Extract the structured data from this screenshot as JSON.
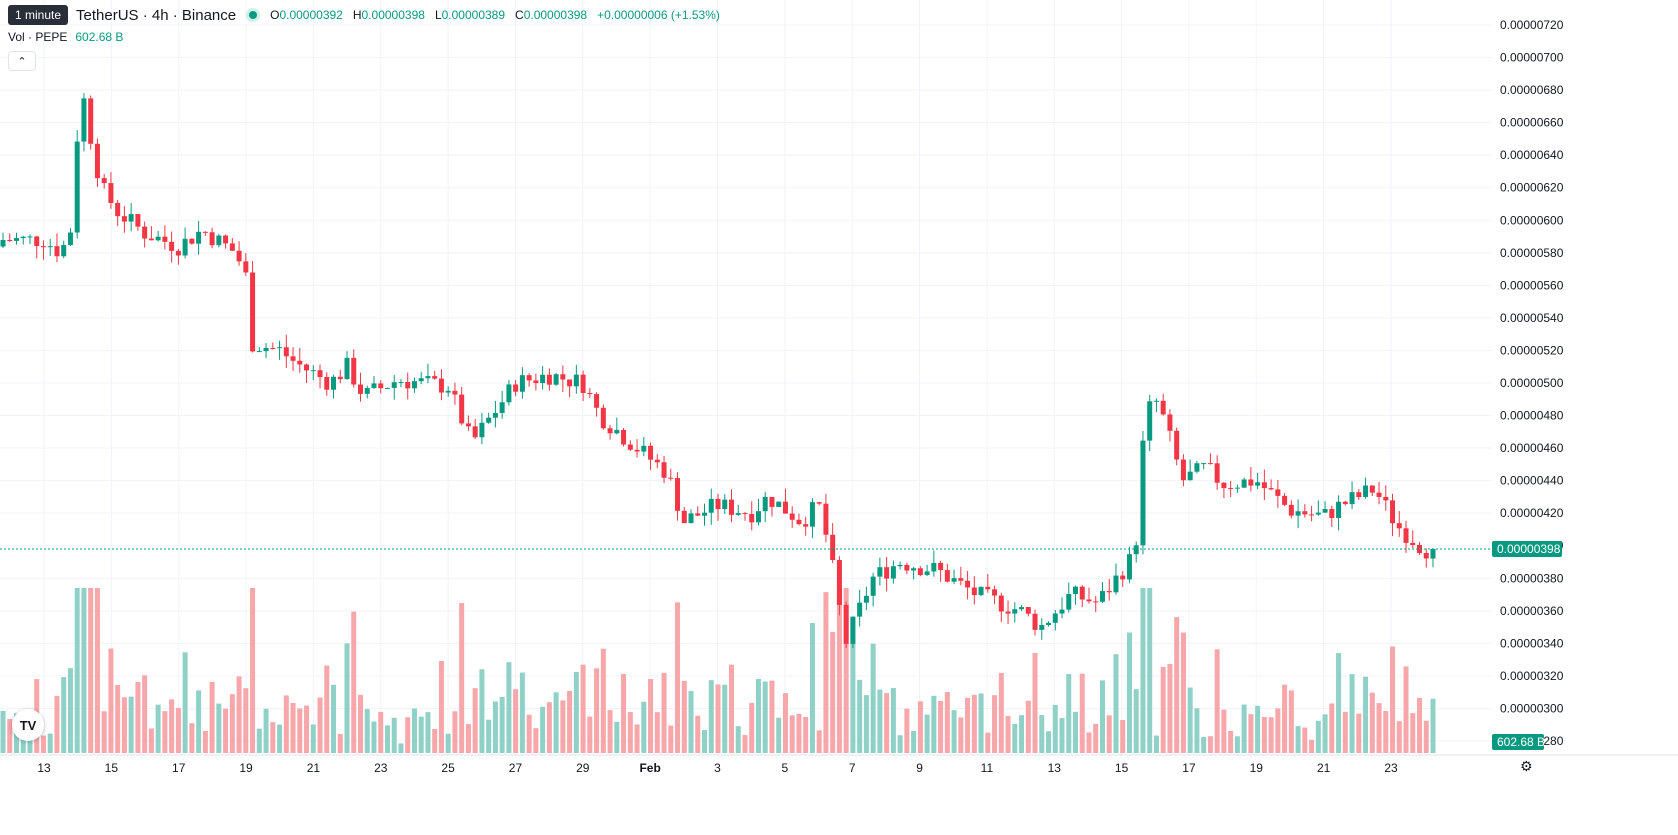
{
  "header": {
    "tooltip": "1 minute",
    "title": "TetherUS · 4h · Binance",
    "ohlc": [
      {
        "label": "O",
        "value": "0.00000392"
      },
      {
        "label": "H",
        "value": "0.00000398"
      },
      {
        "label": "L",
        "value": "0.00000389"
      },
      {
        "label": "C",
        "value": "0.00000398"
      }
    ],
    "change": "+0.00000006 (+1.53%)",
    "volume_label": "Vol · PEPE",
    "volume_value": "602.68 B",
    "collapse_icon": "chevron-up-icon",
    "logo": "TV"
  },
  "colors": {
    "up": "#089981",
    "down": "#f23645",
    "up_volume": "#8fd1c6",
    "down_volume": "#f7a6aa",
    "grid": "#f0f3fa",
    "current_price": "#089981"
  },
  "chart_data": {
    "type": "candlestick",
    "y_axis": {
      "range": [
        2.8e-06,
        7.2e-06
      ],
      "ticks": [
        "0.00000720",
        "0.00000700",
        "0.00000680",
        "0.00000660",
        "0.00000640",
        "0.00000620",
        "0.00000600",
        "0.00000580",
        "0.00000560",
        "0.00000540",
        "0.00000520",
        "0.00000500",
        "0.00000480",
        "0.00000460",
        "0.00000440",
        "0.00000420",
        "0.00000400",
        "0.00000380",
        "0.00000360",
        "0.00000340",
        "0.00000320",
        "0.00000300",
        "0.00000280"
      ]
    },
    "x_axis": {
      "ticks": [
        "13",
        "15",
        "17",
        "19",
        "21",
        "23",
        "25",
        "27",
        "29",
        "Feb",
        "3",
        "5",
        "7",
        "9",
        "11",
        "13",
        "15",
        "17",
        "19",
        "21",
        "23"
      ]
    },
    "current_price": 3.98e-06,
    "current_price_label": "0.00000398",
    "volume_label": "602.68 B",
    "path": [
      [
        "13",
        5.88e-06
      ],
      [
        "13.5",
        5.8e-06
      ],
      [
        "13.9",
        6e-06
      ],
      [
        "14.05",
        6.9e-06
      ],
      [
        "14.3",
        6.6e-06
      ],
      [
        "14.7",
        6.2e-06
      ],
      [
        "15.2",
        6.05e-06
      ],
      [
        "16",
        5.92e-06
      ],
      [
        "17",
        5.84e-06
      ],
      [
        "17.7",
        5.94e-06
      ],
      [
        "18.7",
        5.8e-06
      ],
      [
        "19",
        5.65e-06
      ],
      [
        "19.1",
        5.25e-06
      ],
      [
        "20",
        5.2e-06
      ],
      [
        "20.5",
        5.12e-06
      ],
      [
        "21.5",
        5e-06
      ],
      [
        "22",
        5.1e-06
      ],
      [
        "22.5",
        4.92e-06
      ],
      [
        "23.5",
        5.02e-06
      ],
      [
        "25",
        4.98e-06
      ],
      [
        "25.7",
        4.63e-06
      ],
      [
        "27",
        5e-06
      ],
      [
        "28",
        5.05e-06
      ],
      [
        "29",
        5e-06
      ],
      [
        "29.5",
        4.8e-06
      ],
      [
        "30.5",
        4.62e-06
      ],
      [
        "31.5",
        4.45e-06
      ],
      [
        "Feb 1",
        4.15e-06
      ],
      [
        "Feb 2",
        4.25e-06
      ],
      [
        "Feb 3",
        4.2e-06
      ],
      [
        "Feb 3.5",
        4.3e-06
      ],
      [
        "Feb 4.5",
        4.15e-06
      ],
      [
        "Feb 5",
        4.25e-06
      ],
      [
        "Feb 5.3",
        4e-06
      ],
      [
        "Feb 5.8",
        3.4e-06
      ],
      [
        "Feb 6.6",
        3.8e-06
      ],
      [
        "Feb 7.4",
        3.9e-06
      ],
      [
        "Feb 8.5",
        3.85e-06
      ],
      [
        "Feb 9.7",
        3.7e-06
      ],
      [
        "Feb 11",
        3.6e-06
      ],
      [
        "Feb 11.6",
        3.5e-06
      ],
      [
        "Feb 12.5",
        3.7e-06
      ],
      [
        "Feb 13.3",
        3.65e-06
      ],
      [
        "Feb 14.4",
        3.95e-06
      ],
      [
        "Feb 14.7",
        4.8e-06
      ],
      [
        "Feb 15",
        4.9e-06
      ],
      [
        "Feb 15.3",
        4.75e-06
      ],
      [
        "Feb 15.8",
        4.4e-06
      ],
      [
        "Feb 16.5",
        4.48e-06
      ],
      [
        "Feb 17",
        4.38e-06
      ],
      [
        "Feb 18",
        4.4e-06
      ],
      [
        "Feb 19",
        4.22e-06
      ],
      [
        "Feb 20",
        4.18e-06
      ],
      [
        "Feb 20.5",
        4.25e-06
      ],
      [
        "Feb 21.5",
        4.35e-06
      ],
      [
        "Feb 22.2",
        4.12e-06
      ],
      [
        "Feb 23",
        3.98e-06
      ]
    ]
  }
}
